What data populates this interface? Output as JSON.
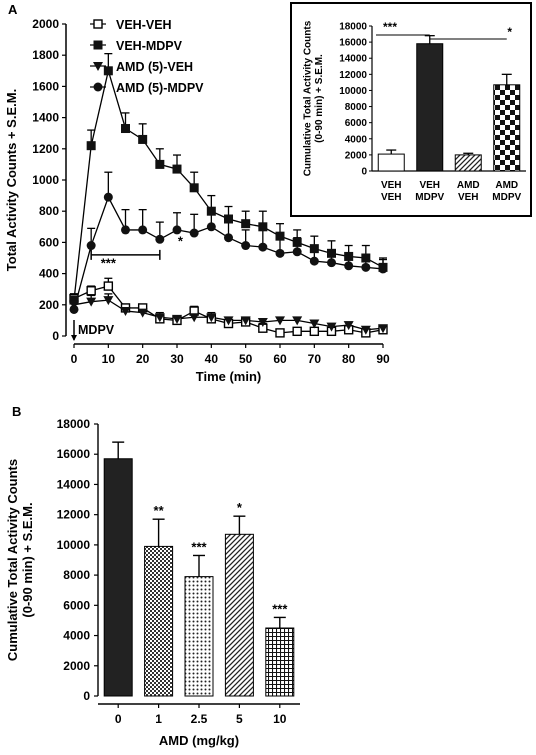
{
  "panel_a_letter": "A",
  "panel_b_letter": "B",
  "chart_data": [
    {
      "type": "line",
      "xlabel": "Time (min)",
      "ylabel": "Total Activity Counts + S.E.M.",
      "xlim": [
        0,
        90
      ],
      "ylim": [
        0,
        2000
      ],
      "x_ticks": [
        "0",
        "10",
        "20",
        "30",
        "40",
        "50",
        "60",
        "70",
        "80",
        "90"
      ],
      "y_ticks": [
        "0",
        "200",
        "400",
        "600",
        "800",
        "1000",
        "1200",
        "1400",
        "1600",
        "1800",
        "2000"
      ],
      "x": [
        0,
        5,
        10,
        15,
        20,
        25,
        30,
        35,
        40,
        45,
        50,
        55,
        60,
        65,
        70,
        75,
        80,
        85,
        90
      ],
      "legend_position": "top-left",
      "series": [
        {
          "name": "VEH-VEH",
          "marker": "open-square",
          "values": [
            240,
            290,
            320,
            180,
            180,
            110,
            100,
            160,
            110,
            80,
            90,
            50,
            20,
            30,
            30,
            30,
            40,
            20,
            40
          ],
          "errors": [
            30,
            30,
            50,
            20,
            20,
            20,
            20,
            30,
            30,
            20,
            20,
            30,
            20,
            20,
            20,
            20,
            20,
            20,
            20
          ]
        },
        {
          "name": "VEH-MDPV",
          "marker": "filled-square",
          "values": [
            230,
            1220,
            1700,
            1330,
            1260,
            1100,
            1070,
            950,
            800,
            750,
            720,
            700,
            640,
            600,
            560,
            530,
            510,
            500,
            440
          ],
          "errors": [
            40,
            100,
            110,
            100,
            100,
            100,
            90,
            100,
            100,
            80,
            80,
            100,
            80,
            80,
            80,
            80,
            70,
            80,
            60
          ]
        },
        {
          "name": "AMD (5)-VEH",
          "marker": "filled-triangle",
          "values": [
            200,
            220,
            230,
            160,
            150,
            120,
            110,
            120,
            120,
            100,
            100,
            90,
            100,
            100,
            80,
            60,
            70,
            40,
            50
          ],
          "errors": [
            30,
            40,
            40,
            30,
            30,
            30,
            20,
            30,
            30,
            20,
            20,
            20,
            20,
            20,
            20,
            20,
            20,
            20,
            20
          ]
        },
        {
          "name": "AMD (5)-MDPV",
          "marker": "filled-circle",
          "values": [
            170,
            580,
            890,
            680,
            680,
            620,
            680,
            660,
            700,
            630,
            580,
            570,
            530,
            540,
            480,
            470,
            450,
            440,
            430
          ],
          "errors": [
            40,
            110,
            160,
            130,
            130,
            110,
            110,
            120,
            110,
            100,
            100,
            110,
            90,
            90,
            80,
            80,
            70,
            60,
            60
          ]
        }
      ],
      "annotations": [
        {
          "text": "***",
          "x": 10,
          "y": 440
        },
        {
          "text": "*",
          "x": 31,
          "y": 580
        },
        {
          "text": "MDPV",
          "x": 0,
          "y": 20
        }
      ],
      "bracket": {
        "x_from": 5,
        "x_to": 25,
        "y": 520
      }
    },
    {
      "type": "bar",
      "title": "",
      "ylabel": "Cumulative Total Activity Counts (0-90 min) + S.E.M.",
      "ylim": [
        0,
        18000
      ],
      "y_ticks": [
        "0",
        "2000",
        "4000",
        "6000",
        "8000",
        "10000",
        "12000",
        "14000",
        "16000",
        "18000"
      ],
      "categories": [
        "VEH VEH",
        "VEH MDPV",
        "AMD VEH",
        "AMD MDPV"
      ],
      "category_lines": [
        [
          "VEH",
          "VEH"
        ],
        [
          "VEH",
          "MDPV"
        ],
        [
          "AMD",
          "VEH"
        ],
        [
          "AMD",
          "MDPV"
        ]
      ],
      "values": [
        2100,
        15800,
        2000,
        10700
      ],
      "errors": [
        500,
        1000,
        200,
        1300
      ],
      "fills": [
        "white",
        "#222222",
        "hatch-diagonal",
        "checker"
      ],
      "brackets": [
        {
          "text": "***",
          "from": 0,
          "to": 1
        },
        {
          "text": "*",
          "from": 1,
          "to": 3
        }
      ]
    },
    {
      "type": "bar",
      "xlabel": "AMD (mg/kg)",
      "ylabel": "Cumulative Total Activity Counts (0-90 min) + S.E.M.",
      "ylim": [
        0,
        18000
      ],
      "y_ticks": [
        "0",
        "2000",
        "4000",
        "6000",
        "8000",
        "10000",
        "12000",
        "14000",
        "16000",
        "18000"
      ],
      "categories": [
        "0",
        "1",
        "2.5",
        "5",
        "10"
      ],
      "values": [
        15700,
        9900,
        7900,
        10700,
        4500
      ],
      "errors": [
        1100,
        1800,
        1400,
        1200,
        700
      ],
      "fills": [
        "#222222",
        "checker-fine",
        "dots",
        "hatch-diagonal",
        "grid"
      ],
      "significance": [
        "",
        "**",
        "***",
        "*",
        "***"
      ]
    }
  ]
}
